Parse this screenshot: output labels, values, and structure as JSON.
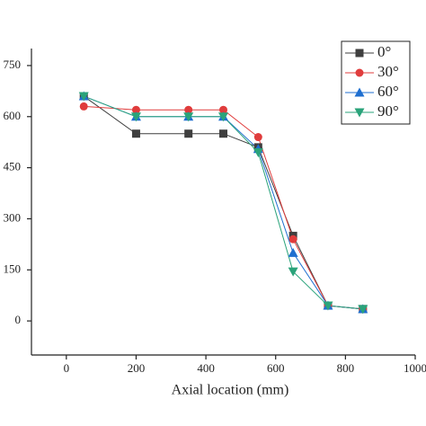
{
  "chart_data": {
    "type": "line",
    "xlabel": "Axial location (mm)",
    "x": [
      50,
      200,
      350,
      450,
      550,
      650,
      750,
      850
    ],
    "series": [
      {
        "name": "0°",
        "color": "#3f3f3f",
        "marker": "square",
        "values": [
          660,
          550,
          550,
          550,
          510,
          250,
          45,
          35
        ]
      },
      {
        "name": "30°",
        "color": "#e03c3c",
        "marker": "circle",
        "values": [
          630,
          620,
          620,
          620,
          540,
          240,
          45,
          35
        ]
      },
      {
        "name": "60°",
        "color": "#1f6fd0",
        "marker": "triangle-up",
        "values": [
          660,
          600,
          600,
          600,
          505,
          200,
          45,
          35
        ]
      },
      {
        "name": "90°",
        "color": "#2aa37a",
        "marker": "triangle-down",
        "values": [
          660,
          600,
          600,
          600,
          495,
          145,
          45,
          35
        ]
      }
    ],
    "xlim": [
      -100,
      1000
    ],
    "xticks": [
      0,
      200,
      400,
      600,
      800,
      1000
    ],
    "ylim": [
      -100,
      800
    ],
    "yticks": [
      0,
      150,
      300,
      450,
      600,
      750
    ],
    "legend": "upper right"
  }
}
